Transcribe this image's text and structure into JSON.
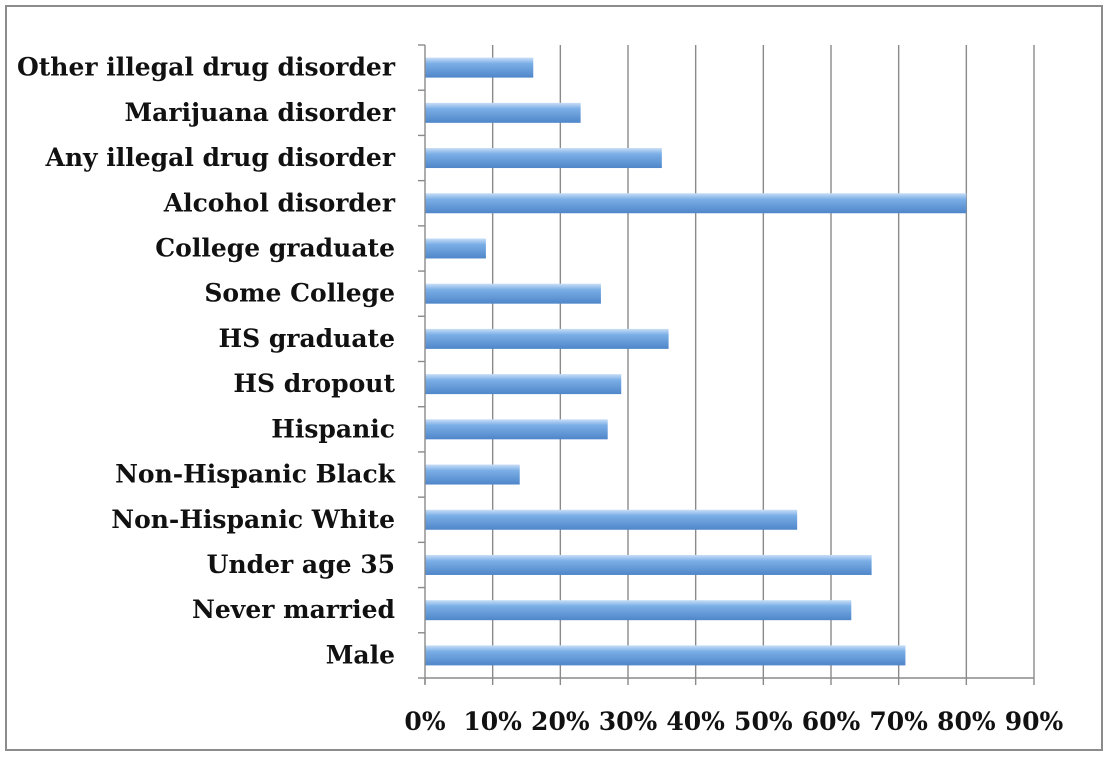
{
  "chart_data": {
    "type": "bar",
    "orientation": "horizontal",
    "title": "",
    "xlabel": "",
    "ylabel": "",
    "categories": [
      "Male",
      "Never married",
      "Under age 35",
      "Non-Hispanic White",
      "Non-Hispanic Black",
      "Hispanic",
      "HS dropout",
      "HS graduate",
      "Some College",
      "College graduate",
      "Alcohol disorder",
      "Any illegal drug disorder",
      "Marijuana disorder",
      "Other illegal drug disorder"
    ],
    "values": [
      71,
      63,
      66,
      55,
      14,
      27,
      29,
      36,
      26,
      9,
      80,
      35,
      23,
      16
    ],
    "value_unit": "%",
    "xlim": [
      0,
      90
    ],
    "xticks": [
      0,
      10,
      20,
      30,
      40,
      50,
      60,
      70,
      80,
      90
    ],
    "xtick_labels": [
      "0%",
      "10%",
      "20%",
      "30%",
      "40%",
      "50%",
      "60%",
      "70%",
      "80%",
      "90%"
    ],
    "grid": "vertical",
    "legend": "none",
    "bar_color": "#7aaee6",
    "bar_color_highlight": "#c9def7",
    "bar_color_shadow": "#4f86c9"
  }
}
